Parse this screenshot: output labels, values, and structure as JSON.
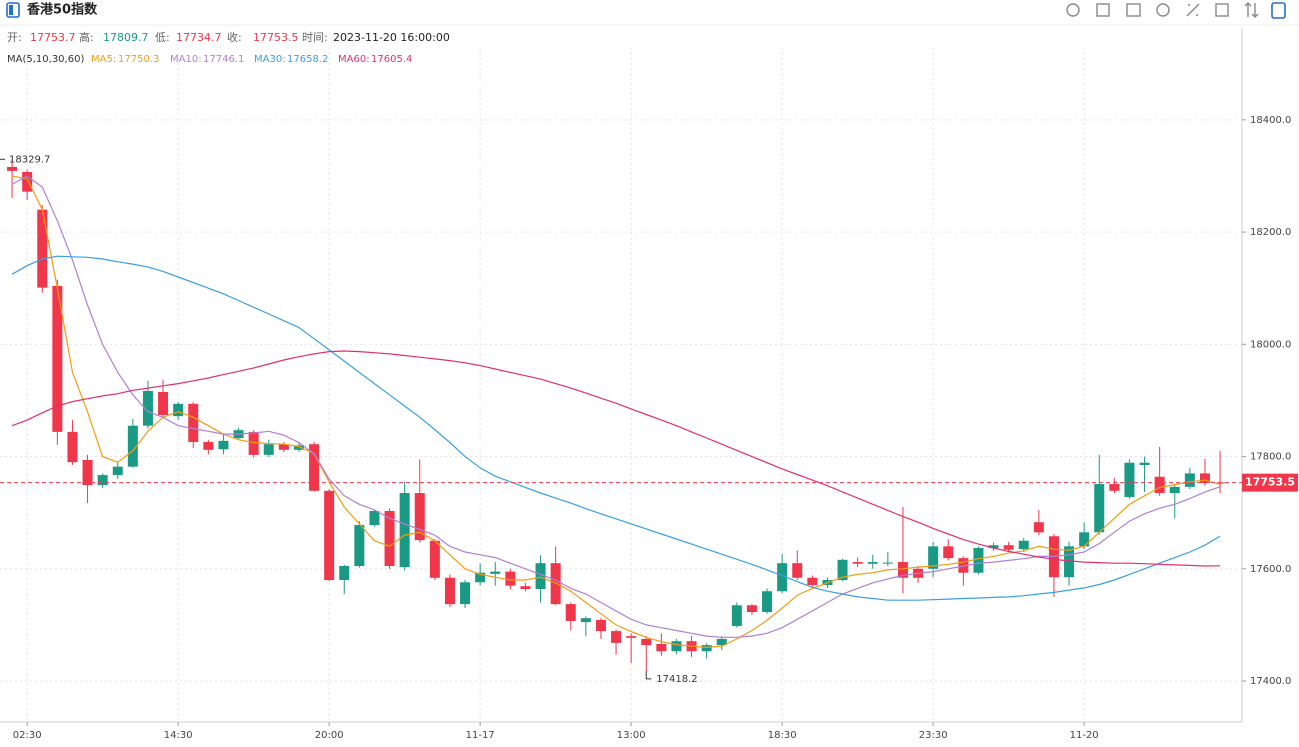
{
  "header": {
    "title": "香港50指数",
    "ohlc_labels": [
      "开:",
      "高:",
      "低:",
      "收:",
      "时间:"
    ],
    "time": "2023-11-20 16:00:00",
    "ma_label": "MA(5,10,30,60)"
  },
  "chart_data": {
    "type": "candlestick",
    "categories": [
      null,
      "02:30",
      null,
      null,
      null,
      null,
      null,
      null,
      null,
      null,
      null,
      "14:30",
      null,
      null,
      null,
      null,
      null,
      null,
      null,
      null,
      null,
      "20:00",
      null,
      null,
      null,
      null,
      null,
      null,
      null,
      null,
      null,
      "11-17",
      null,
      null,
      null,
      null,
      null,
      null,
      null,
      null,
      null,
      "13:00",
      null,
      null,
      null,
      null,
      null,
      null,
      null,
      null,
      null,
      "18:30",
      null,
      null,
      null,
      null,
      null,
      null,
      null,
      null,
      null,
      "23:30",
      null,
      null,
      null,
      null,
      null,
      null,
      null,
      null,
      null,
      "11-20",
      null,
      null,
      null,
      null,
      null,
      null,
      null,
      null,
      null
    ],
    "open": [
      18316,
      18307,
      18240,
      18104,
      17844,
      17794,
      17749,
      17767,
      17782,
      17855,
      17915,
      17872,
      17894,
      17826,
      17813,
      17833,
      17844,
      17803,
      17822,
      17812,
      17822,
      17739,
      17580,
      17605,
      17678,
      17703,
      17603,
      17735,
      17650,
      17584,
      17537,
      17576,
      17591,
      17595,
      17569,
      17564,
      17610,
      17537,
      17505,
      17509,
      17489,
      17480,
      17475,
      17466,
      17453,
      17471,
      17453,
      17464,
      17498,
      17535,
      17523,
      17560,
      17610,
      17584,
      17571,
      17580,
      17612,
      17609,
      17610,
      17612,
      17600,
      17600,
      17640,
      17619,
      17593,
      17637,
      17642,
      17635,
      17683,
      17658,
      17585,
      17640,
      17665,
      17751,
      17728,
      17785,
      17764,
      17735,
      17746,
      17770,
      17753.7
    ],
    "high": [
      18329.7,
      18311,
      18248,
      18115,
      17865,
      17803,
      17770,
      17790,
      17867,
      17935,
      17937,
      17897,
      17897,
      17830,
      17840,
      17851,
      17847,
      17830,
      17826,
      17824,
      17826,
      17742,
      17607,
      17685,
      17705,
      17708,
      17755,
      17795,
      17653,
      17590,
      17580,
      17610,
      17612,
      17600,
      17575,
      17624,
      17640,
      17540,
      17515,
      17512,
      17492,
      17485,
      17480,
      17485,
      17475,
      17480,
      17467,
      17480,
      17540,
      17537,
      17565,
      17626,
      17633,
      17588,
      17584,
      17618,
      17620,
      17625,
      17630,
      17710,
      17605,
      17648,
      17653,
      17622,
      17640,
      17647,
      17648,
      17655,
      17705,
      17662,
      17648,
      17683,
      17803,
      17762,
      17795,
      17800,
      17817,
      17750,
      17780,
      17796,
      17809.7
    ],
    "low": [
      18261,
      18257,
      18092,
      17821,
      17785,
      17717,
      17744,
      17760,
      17780,
      17850,
      17869,
      17865,
      17815,
      17804,
      17804,
      17830,
      17798,
      17799,
      17808,
      17808,
      17737,
      17578,
      17555,
      17602,
      17675,
      17600,
      17597,
      17647,
      17580,
      17532,
      17530,
      17570,
      17570,
      17563,
      17560,
      17540,
      17535,
      17490,
      17480,
      17475,
      17447,
      17432,
      17418.2,
      17445,
      17448,
      17443,
      17440,
      17455,
      17495,
      17518,
      17520,
      17557,
      17580,
      17565,
      17566,
      17578,
      17603,
      17600,
      17605,
      17556,
      17575,
      17585,
      17615,
      17570,
      17590,
      17632,
      17630,
      17630,
      17660,
      17550,
      17570,
      17635,
      17660,
      17735,
      17725,
      17737,
      17730,
      17690,
      17742,
      17748,
      17734.7
    ],
    "close": [
      18309,
      18272,
      18101,
      17844,
      17790,
      17749,
      17767,
      17782,
      17855,
      17917,
      17874,
      17894,
      17826,
      17812,
      17828,
      17847,
      17803,
      17822,
      17812,
      17820,
      17739,
      17580,
      17605,
      17678,
      17703,
      17605,
      17735,
      17651,
      17584,
      17537,
      17576,
      17593,
      17595,
      17570,
      17564,
      17610,
      17537,
      17507,
      17512,
      17489,
      17468,
      17477,
      17464,
      17453,
      17471,
      17453,
      17464,
      17475,
      17535,
      17523,
      17560,
      17610,
      17584,
      17571,
      17580,
      17616,
      17609,
      17612,
      17611,
      17584,
      17584,
      17640,
      17619,
      17593,
      17637,
      17642,
      17634,
      17650,
      17665,
      17585,
      17640,
      17665,
      17751,
      17739,
      17789,
      17789,
      17735,
      17746,
      17770,
      17753,
      17753.5
    ],
    "up_color": "#1a9a85",
    "down_color": "#f0364b",
    "ma": [
      {
        "name": "MA5:",
        "color": "#f39c12",
        "values": [
          18300,
          18295,
          18240,
          18100,
          17950,
          17880,
          17800,
          17790,
          17810,
          17845,
          17870,
          17880,
          17870,
          17855,
          17840,
          17830,
          17825,
          17823,
          17822,
          17818,
          17805,
          17755,
          17710,
          17680,
          17650,
          17640,
          17660,
          17665,
          17650,
          17625,
          17600,
          17590,
          17585,
          17580,
          17580,
          17585,
          17575,
          17560,
          17540,
          17520,
          17500,
          17488,
          17478,
          17470,
          17465,
          17462,
          17460,
          17462,
          17475,
          17490,
          17508,
          17530,
          17553,
          17565,
          17575,
          17585,
          17590,
          17593,
          17598,
          17600,
          17603,
          17605,
          17608,
          17612,
          17618,
          17622,
          17628,
          17632,
          17640,
          17635,
          17633,
          17640,
          17665,
          17690,
          17715,
          17730,
          17745,
          17750,
          17755,
          17758,
          17750.3
        ]
      },
      {
        "name": "MA10:",
        "color": "#b07fd6",
        "values": [
          18285,
          18300,
          18280,
          18220,
          18150,
          18070,
          18000,
          17950,
          17910,
          17880,
          17870,
          17855,
          17850,
          17845,
          17840,
          17840,
          17842,
          17845,
          17838,
          17825,
          17805,
          17760,
          17730,
          17715,
          17705,
          17690,
          17680,
          17670,
          17660,
          17640,
          17630,
          17625,
          17620,
          17610,
          17600,
          17590,
          17580,
          17565,
          17555,
          17540,
          17525,
          17510,
          17500,
          17495,
          17490,
          17485,
          17480,
          17478,
          17478,
          17480,
          17485,
          17495,
          17510,
          17525,
          17540,
          17555,
          17565,
          17575,
          17582,
          17588,
          17592,
          17595,
          17600,
          17605,
          17610,
          17612,
          17615,
          17618,
          17622,
          17622,
          17625,
          17630,
          17645,
          17665,
          17685,
          17698,
          17708,
          17715,
          17725,
          17737,
          17746.1
        ]
      },
      {
        "name": "MA30:",
        "color": "#3a9fe0",
        "values": [
          18125,
          18140,
          18152,
          18157,
          18156,
          18155,
          18152,
          18147,
          18143,
          18138,
          18130,
          18120,
          18110,
          18100,
          18090,
          18078,
          18066,
          18054,
          18042,
          18030,
          18010,
          17990,
          17970,
          17950,
          17930,
          17910,
          17890,
          17870,
          17848,
          17825,
          17800,
          17780,
          17765,
          17755,
          17745,
          17735,
          17726,
          17717,
          17707,
          17698,
          17689,
          17680,
          17671,
          17662,
          17653,
          17644,
          17635,
          17626,
          17617,
          17608,
          17598,
          17588,
          17577,
          17567,
          17560,
          17555,
          17550,
          17547,
          17544,
          17544,
          17544,
          17545,
          17546,
          17547,
          17548,
          17549,
          17550,
          17552,
          17555,
          17558,
          17562,
          17566,
          17572,
          17580,
          17590,
          17600,
          17610,
          17620,
          17630,
          17642,
          17658.2
        ]
      },
      {
        "name": "MA60:",
        "color": "#e0306d",
        "values": [
          17855,
          17865,
          17878,
          17890,
          17898,
          17903,
          17908,
          17912,
          17918,
          17922,
          17926,
          17930,
          17935,
          17940,
          17946,
          17952,
          17958,
          17965,
          17972,
          17978,
          17983,
          17987,
          17988,
          17987,
          17985,
          17983,
          17980,
          17977,
          17974,
          17971,
          17967,
          17962,
          17956,
          17950,
          17944,
          17938,
          17930,
          17922,
          17913,
          17904,
          17895,
          17885,
          17875,
          17865,
          17855,
          17844,
          17833,
          17822,
          17811,
          17800,
          17789,
          17778,
          17768,
          17758,
          17748,
          17737,
          17726,
          17715,
          17704,
          17693,
          17683,
          17672,
          17662,
          17652,
          17644,
          17637,
          17631,
          17626,
          17621,
          17617,
          17614,
          17612,
          17611,
          17610,
          17610,
          17609,
          17608,
          17607,
          17606,
          17605,
          17605.4
        ]
      }
    ],
    "ylim": [
      17327,
      18528
    ],
    "yticks": [
      {
        "value": 17400,
        "label": "17400.0"
      },
      {
        "value": 17600,
        "label": "17600.0"
      },
      {
        "value": 17800,
        "label": "17800.0"
      },
      {
        "value": 18000,
        "label": "18000.0"
      },
      {
        "value": 18200,
        "label": "18200.0"
      },
      {
        "value": 18400,
        "label": "18400.0"
      }
    ],
    "grid": true
  }
}
